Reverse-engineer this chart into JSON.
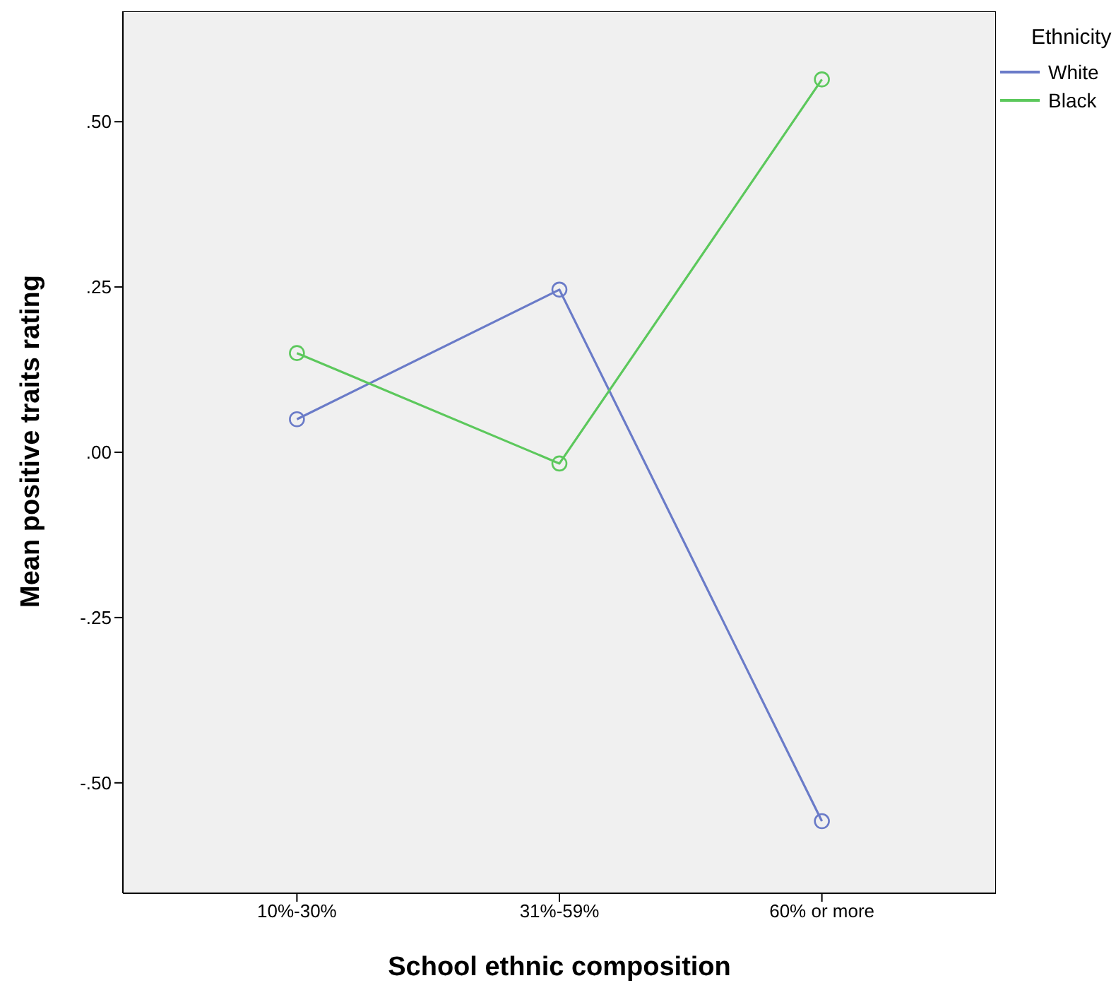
{
  "chart_data": {
    "type": "line",
    "xlabel": "School ethnic composition",
    "ylabel": "Mean positive traits rating",
    "legend_title": "Ethnicity",
    "categories": [
      "10%-30%",
      "31%-59%",
      "60% or more"
    ],
    "series": [
      {
        "name": "White",
        "color": "#6a7bc8",
        "values": [
          0.05,
          0.246,
          -0.558
        ]
      },
      {
        "name": "Black",
        "color": "#5cc85c",
        "values": [
          0.15,
          -0.017,
          0.564
        ]
      }
    ],
    "ylim": [
      -0.667,
      0.667
    ],
    "yticks": [
      {
        "value": -0.5,
        "label": "-.50"
      },
      {
        "value": -0.25,
        "label": "-.25"
      },
      {
        "value": 0,
        "label": ".00"
      },
      {
        "value": 0.25,
        "label": ".25"
      },
      {
        "value": 0.5,
        "label": ".50"
      }
    ],
    "grid": false,
    "legend": "top right",
    "marker": "circle",
    "line_style": "solid"
  }
}
